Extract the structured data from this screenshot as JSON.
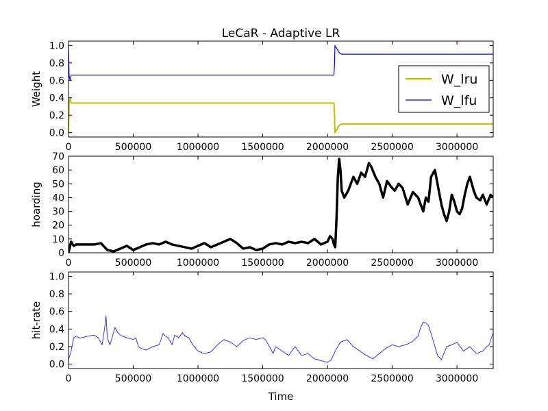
{
  "chart_data": [
    {
      "type": "line",
      "title": "LeCaR - Adaptive LR",
      "xlabel": "",
      "ylabel": "Weight",
      "xlim": [
        0,
        3280000
      ],
      "ylim": [
        -0.05,
        1.05
      ],
      "xticks": [
        0,
        500000,
        1000000,
        1500000,
        2000000,
        2500000,
        3000000
      ],
      "xtick_labels": [
        "0",
        "500000",
        "1000000",
        "1500000",
        "2000000",
        "2500000",
        "3000000"
      ],
      "yticks": [
        0.0,
        0.2,
        0.4,
        0.6,
        0.8,
        1.0
      ],
      "ytick_labels": [
        "0.0",
        "0.2",
        "0.4",
        "0.6",
        "0.8",
        "1.0"
      ],
      "legend": "center-right",
      "series": [
        {
          "name": "W_lru",
          "color": "#bfbf00",
          "x": [
            0,
            5000,
            12000,
            20000,
            40000,
            2050000,
            2055000,
            2058000,
            2062000,
            2070000,
            2080000,
            2095000,
            2110000,
            3280000
          ],
          "values": [
            0.0,
            0.35,
            0.4,
            0.34,
            0.34,
            0.34,
            0.2,
            0.0,
            0.02,
            0.03,
            0.06,
            0.09,
            0.1,
            0.1
          ]
        },
        {
          "name": "W_lfu",
          "color": "#0000ff",
          "x": [
            0,
            5000,
            12000,
            20000,
            40000,
            2050000,
            2055000,
            2058000,
            2062000,
            2070000,
            2080000,
            2095000,
            2110000,
            3280000
          ],
          "values": [
            1.0,
            0.65,
            0.6,
            0.66,
            0.66,
            0.66,
            0.8,
            1.0,
            0.98,
            0.97,
            0.94,
            0.91,
            0.9,
            0.9
          ]
        }
      ]
    },
    {
      "type": "line",
      "title": "",
      "xlabel": "",
      "ylabel": "hoarding",
      "xlim": [
        0,
        3280000
      ],
      "ylim": [
        0,
        70
      ],
      "xticks": [
        0,
        500000,
        1000000,
        1500000,
        2000000,
        2500000,
        3000000
      ],
      "xtick_labels": [
        "0",
        "500000",
        "1000000",
        "1500000",
        "2000000",
        "2500000",
        "3000000"
      ],
      "yticks": [
        0,
        10,
        20,
        30,
        40,
        50,
        60,
        70
      ],
      "ytick_labels": [
        "0",
        "10",
        "20",
        "30",
        "40",
        "50",
        "60",
        "70"
      ],
      "series": [
        {
          "color": "#000000",
          "x": [
            0,
            20000,
            40000,
            60000,
            100000,
            150000,
            200000,
            250000,
            280000,
            300000,
            350000,
            400000,
            450000,
            500000,
            550000,
            600000,
            650000,
            700000,
            750000,
            800000,
            850000,
            900000,
            950000,
            1000000,
            1050000,
            1100000,
            1150000,
            1200000,
            1250000,
            1300000,
            1350000,
            1400000,
            1450000,
            1500000,
            1550000,
            1600000,
            1650000,
            1700000,
            1750000,
            1800000,
            1850000,
            1900000,
            1950000,
            2000000,
            2020000,
            2040000,
            2050000,
            2060000,
            2070000,
            2080000,
            2090000,
            2100000,
            2110000,
            2130000,
            2160000,
            2200000,
            2230000,
            2260000,
            2290000,
            2320000,
            2340000,
            2370000,
            2400000,
            2430000,
            2460000,
            2490000,
            2520000,
            2550000,
            2580000,
            2620000,
            2660000,
            2700000,
            2740000,
            2760000,
            2780000,
            2800000,
            2830000,
            2860000,
            2880000,
            2900000,
            2920000,
            2940000,
            2960000,
            2980000,
            3000000,
            3020000,
            3040000,
            3060000,
            3080000,
            3100000,
            3130000,
            3150000,
            3180000,
            3200000,
            3230000,
            3260000,
            3280000
          ],
          "values": [
            0,
            8,
            5,
            6,
            6,
            6,
            6,
            7,
            4,
            2,
            1,
            3,
            5,
            2,
            4,
            6,
            7,
            6,
            8,
            6,
            5,
            4,
            3,
            5,
            7,
            4,
            6,
            8,
            10,
            7,
            3,
            4,
            2,
            3,
            6,
            7,
            6,
            8,
            7,
            8,
            7,
            10,
            6,
            8,
            12,
            10,
            6,
            4,
            25,
            55,
            68,
            60,
            45,
            40,
            45,
            55,
            50,
            58,
            55,
            65,
            62,
            55,
            50,
            40,
            52,
            48,
            45,
            50,
            47,
            35,
            44,
            40,
            30,
            40,
            37,
            55,
            60,
            45,
            35,
            28,
            23,
            30,
            42,
            37,
            30,
            28,
            32,
            42,
            50,
            55,
            45,
            40,
            38,
            42,
            35,
            42,
            40
          ]
        }
      ]
    },
    {
      "type": "line",
      "title": "",
      "xlabel": "Time",
      "ylabel": "hit-rate",
      "xlim": [
        0,
        3280000
      ],
      "ylim": [
        -0.05,
        1.05
      ],
      "xticks": [
        0,
        500000,
        1000000,
        1500000,
        2000000,
        2500000,
        3000000
      ],
      "xtick_labels": [
        "0",
        "500000",
        "1000000",
        "1500000",
        "2000000",
        "2500000",
        "3000000"
      ],
      "yticks": [
        0.0,
        0.2,
        0.4,
        0.6,
        0.8,
        1.0
      ],
      "ytick_labels": [
        "0.0",
        "0.2",
        "0.4",
        "0.6",
        "0.8",
        "1.0"
      ],
      "series": [
        {
          "color": "#3333ff",
          "x": [
            0,
            20000,
            40000,
            60000,
            80000,
            100000,
            150000,
            200000,
            230000,
            260000,
            280000,
            290000,
            300000,
            320000,
            340000,
            360000,
            380000,
            400000,
            450000,
            500000,
            520000,
            540000,
            560000,
            600000,
            650000,
            700000,
            730000,
            750000,
            770000,
            800000,
            820000,
            850000,
            880000,
            900000,
            930000,
            960000,
            1000000,
            1050000,
            1100000,
            1150000,
            1200000,
            1250000,
            1300000,
            1350000,
            1400000,
            1450000,
            1500000,
            1520000,
            1560000,
            1580000,
            1600000,
            1650000,
            1700000,
            1750000,
            1800000,
            1850000,
            1900000,
            1950000,
            2000000,
            2030000,
            2060000,
            2100000,
            2150000,
            2200000,
            2250000,
            2300000,
            2350000,
            2400000,
            2450000,
            2500000,
            2550000,
            2600000,
            2650000,
            2700000,
            2720000,
            2740000,
            2760000,
            2780000,
            2800000,
            2820000,
            2850000,
            2880000,
            2920000,
            2960000,
            3000000,
            3050000,
            3100000,
            3150000,
            3200000,
            3230000,
            3250000,
            3270000,
            3280000
          ],
          "values": [
            0.05,
            0.15,
            0.3,
            0.32,
            0.3,
            0.3,
            0.32,
            0.33,
            0.3,
            0.22,
            0.42,
            0.55,
            0.3,
            0.22,
            0.32,
            0.42,
            0.36,
            0.33,
            0.3,
            0.28,
            0.3,
            0.2,
            0.18,
            0.16,
            0.2,
            0.22,
            0.35,
            0.32,
            0.3,
            0.22,
            0.33,
            0.3,
            0.36,
            0.32,
            0.3,
            0.22,
            0.15,
            0.12,
            0.14,
            0.22,
            0.28,
            0.25,
            0.2,
            0.27,
            0.3,
            0.28,
            0.3,
            0.28,
            0.18,
            0.12,
            0.2,
            0.15,
            0.1,
            0.2,
            0.1,
            0.12,
            0.06,
            0.04,
            0.02,
            0.05,
            0.15,
            0.25,
            0.28,
            0.2,
            0.15,
            0.1,
            0.06,
            0.12,
            0.18,
            0.22,
            0.2,
            0.22,
            0.25,
            0.32,
            0.42,
            0.48,
            0.47,
            0.44,
            0.35,
            0.25,
            0.1,
            0.05,
            0.2,
            0.22,
            0.25,
            0.15,
            0.2,
            0.12,
            0.15,
            0.2,
            0.22,
            0.32,
            0.35
          ]
        }
      ]
    }
  ]
}
